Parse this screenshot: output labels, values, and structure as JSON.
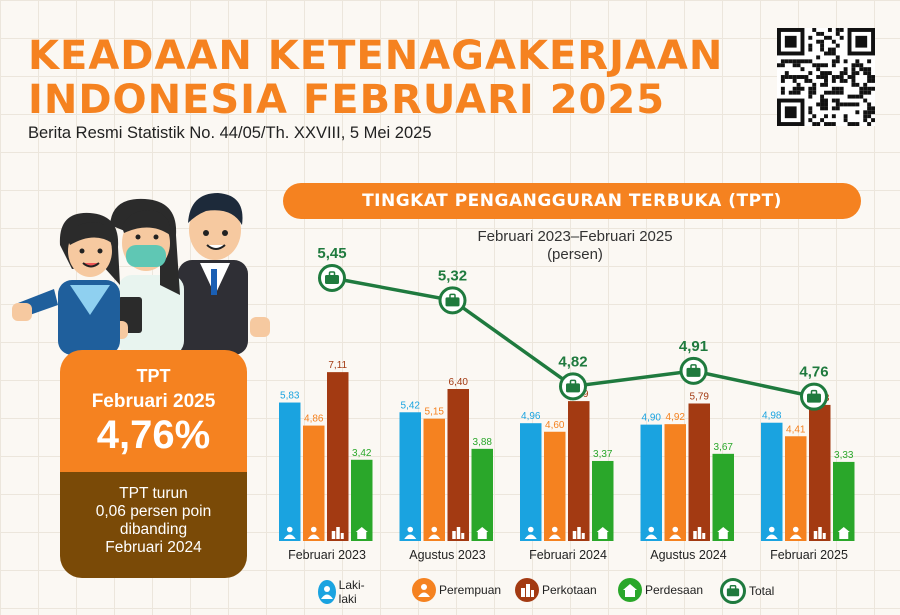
{
  "header": {
    "title_line1": "KEADAAN KETENAGAKERJAAN",
    "title_line2": "INDONESIA FEBRUARI 2025",
    "subtitle": "Berita Resmi Statistik No. 44/05/Th. XXVIII, 5 Mei 2025"
  },
  "banner": "TINGKAT PENGANGGURAN TERBUKA (TPT)",
  "period_line1": "Februari 2023–Februari 2025",
  "period_line2": "(persen)",
  "card": {
    "label1": "TPT",
    "label2": "Februari 2025",
    "value": "4,76%",
    "note_line1": "TPT turun",
    "note_line2": "0,06 persen poin",
    "note_line3": "dibanding",
    "note_line4": "Februari 2024"
  },
  "colors": {
    "laki": "#1aa3e0",
    "perempuan": "#f58220",
    "perkotaan": "#a33a12",
    "perdesaan": "#2aa72a",
    "total": "#1f7a3e",
    "orange": "#f58220",
    "brown": "#7a4a07"
  },
  "chart_data": {
    "type": "bar",
    "categories": [
      "Februari 2023",
      "Agustus 2023",
      "Februari 2024",
      "Agustus 2024",
      "Februari 2025"
    ],
    "series": [
      {
        "name": "Laki-laki",
        "values": [
          5.83,
          5.42,
          4.96,
          4.9,
          4.98
        ],
        "labels": [
          "5,83",
          "5,42",
          "4,96",
          "4,90",
          "4,98"
        ],
        "color": "#1aa3e0"
      },
      {
        "name": "Perempuan",
        "values": [
          4.86,
          5.15,
          4.6,
          4.92,
          4.41
        ],
        "labels": [
          "4,86",
          "5,15",
          "4,60",
          "4,92",
          "4,41"
        ],
        "color": "#f58220"
      },
      {
        "name": "Perkotaan",
        "values": [
          7.11,
          6.4,
          5.89,
          5.79,
          5.73
        ],
        "labels": [
          "7,11",
          "6,40",
          "5,89",
          "5,79",
          "5,73"
        ],
        "color": "#a33a12"
      },
      {
        "name": "Perdesaan",
        "values": [
          3.42,
          3.88,
          3.37,
          3.67,
          3.33
        ],
        "labels": [
          "3,42",
          "3,88",
          "3,37",
          "3,67",
          "3,33"
        ],
        "color": "#2aa72a"
      }
    ],
    "line": {
      "name": "Total",
      "values": [
        5.45,
        5.32,
        4.82,
        4.91,
        4.76
      ],
      "labels": [
        "5,45",
        "5,32",
        "4,82",
        "4,91",
        "4,76"
      ],
      "color": "#1f7a3e"
    },
    "unit": "persen",
    "legend_position": "bottom",
    "grid": false
  }
}
